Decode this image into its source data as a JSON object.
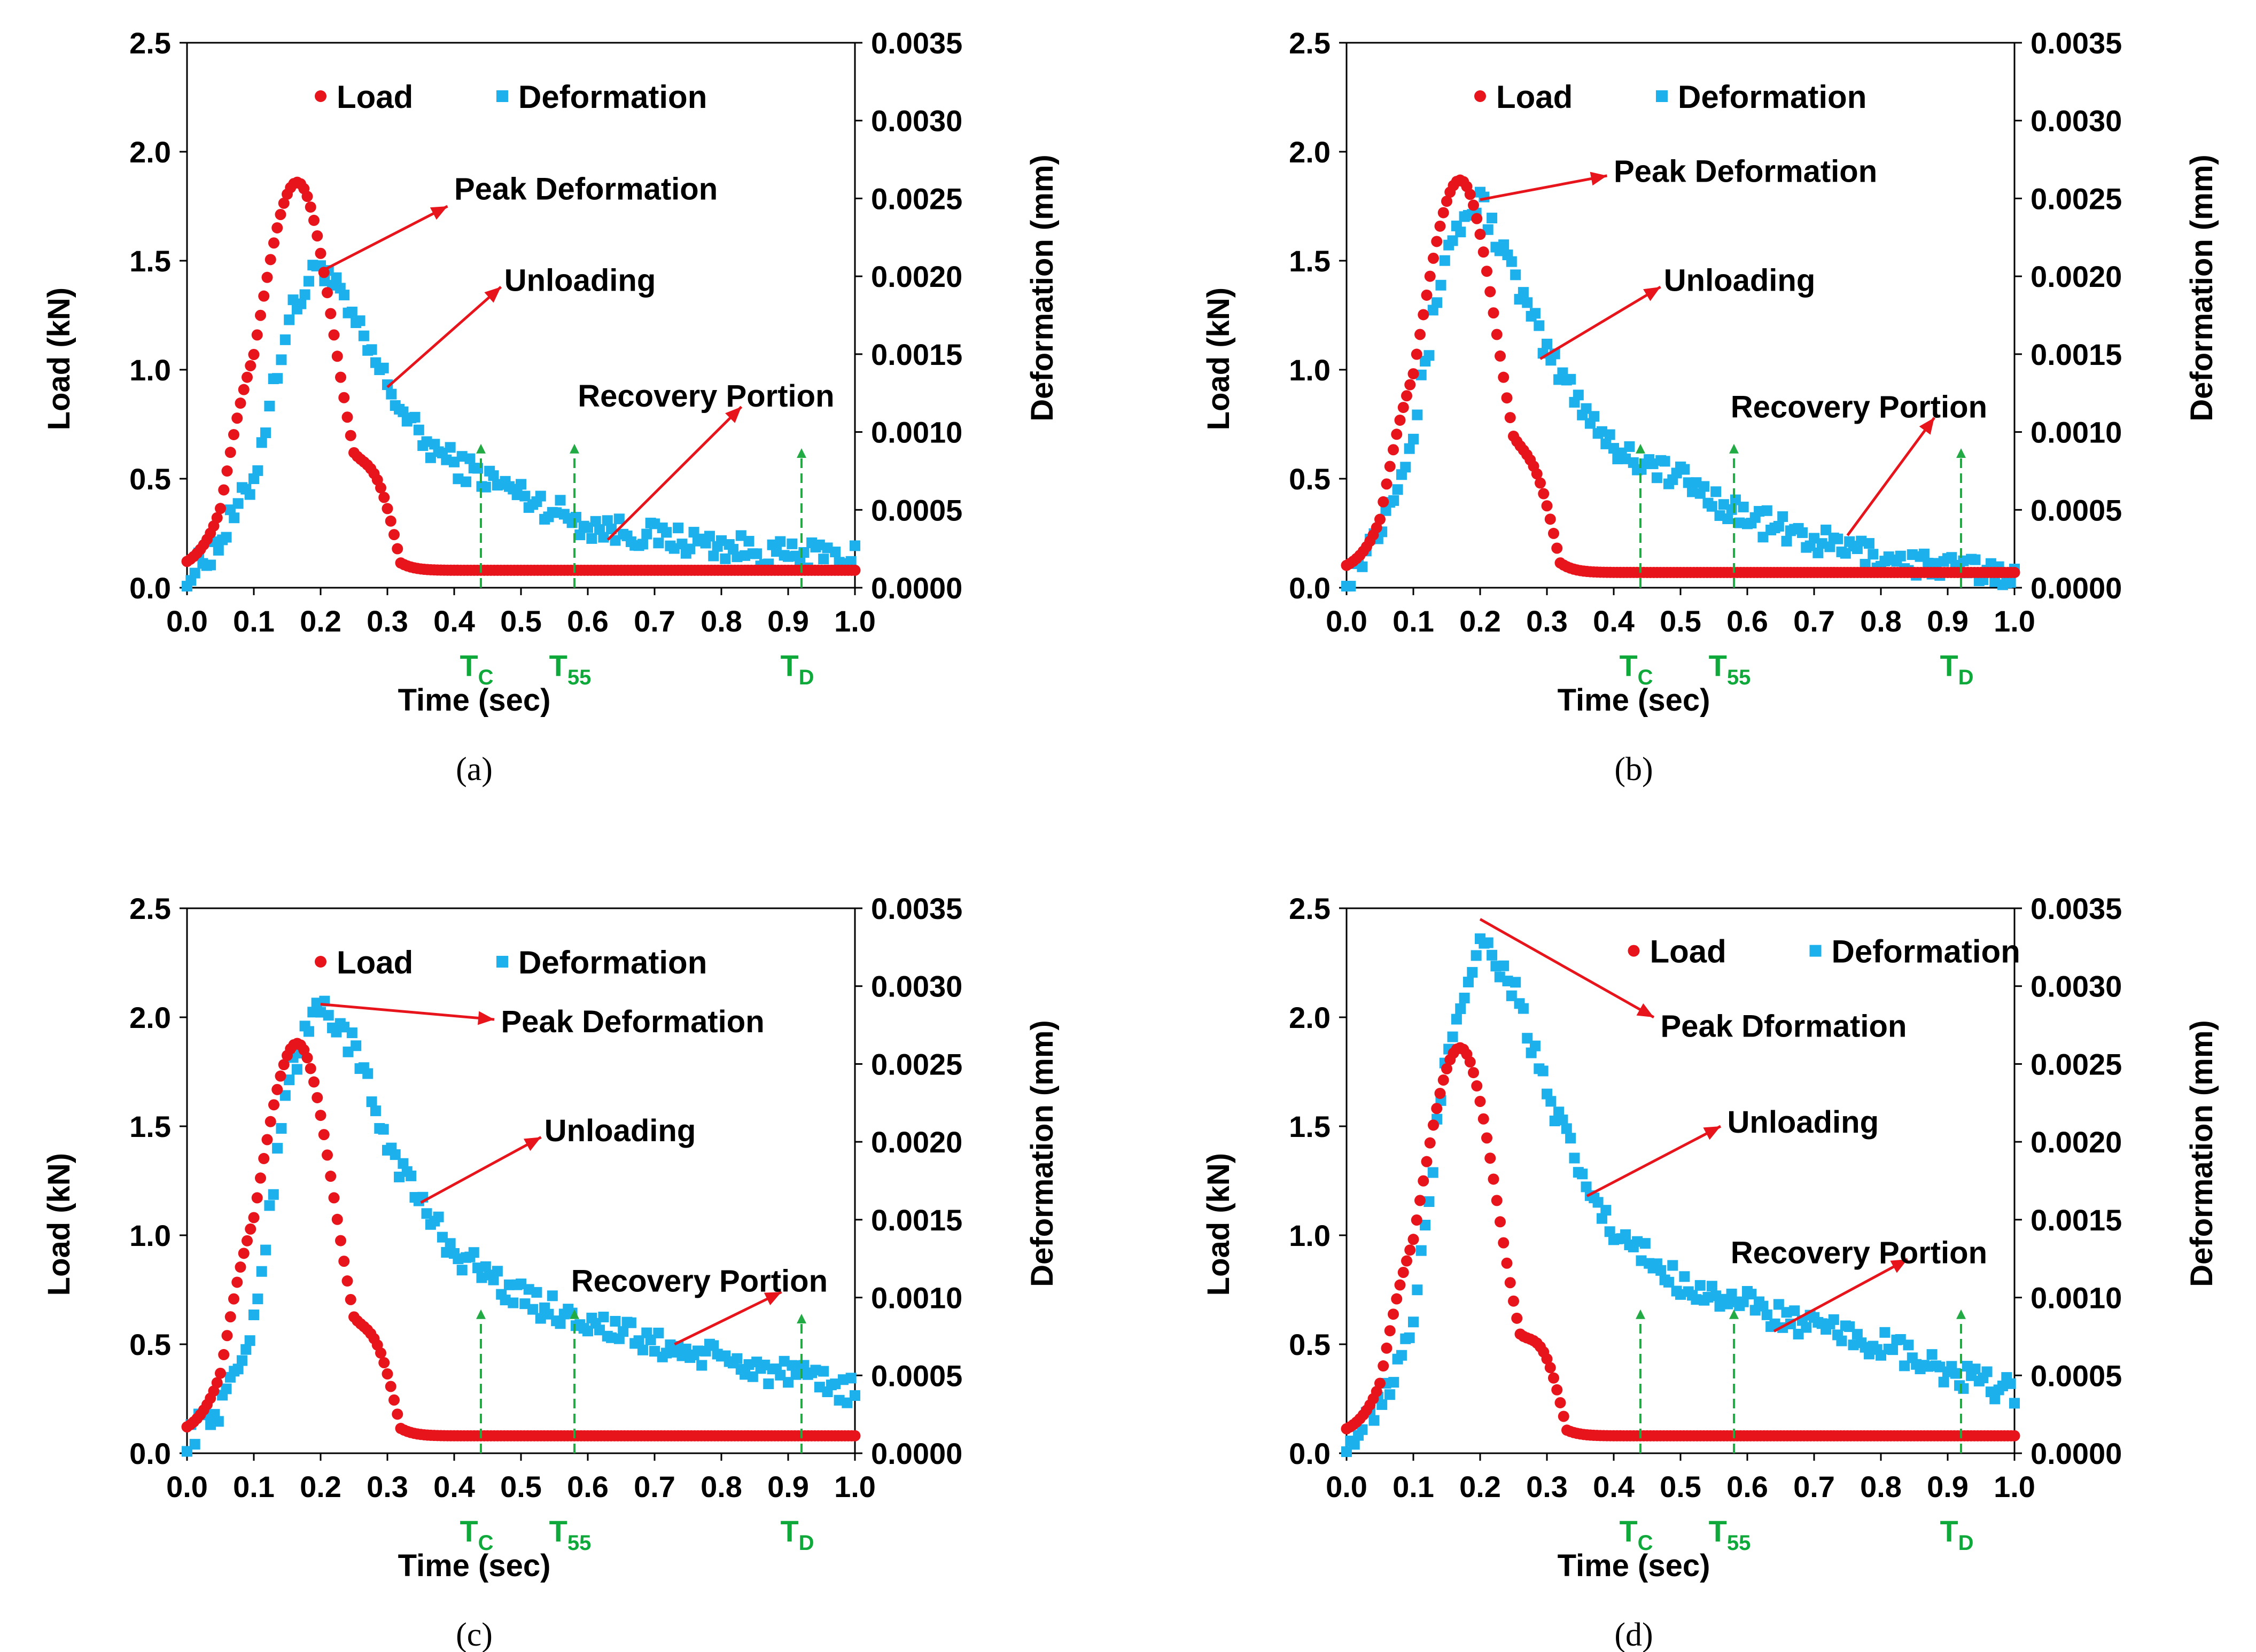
{
  "figure": {
    "colors": {
      "load": "#e8141c",
      "deformation": "#1cb0ec",
      "markers": "#22aa44",
      "arrow": "#e8141c"
    }
  },
  "panel_layout": [
    {
      "ox": 60,
      "oy": 10
    },
    {
      "ox": 2230,
      "oy": 10
    },
    {
      "ox": 60,
      "oy": 1630
    },
    {
      "ox": 2230,
      "oy": 1630
    }
  ],
  "chart_data": [
    {
      "type": "scatter",
      "caption": "(a)",
      "xlabel": "Time (sec)",
      "ylabel": "Load (kN)",
      "y2label": "Deformation (mm)",
      "xlim": [
        0,
        1.0
      ],
      "ylim": [
        0,
        2.5
      ],
      "y2lim": [
        0,
        0.0035
      ],
      "xticks": [
        "0.0",
        "0.1",
        "0.2",
        "0.3",
        "0.4",
        "0.5",
        "0.6",
        "0.7",
        "0.8",
        "0.9",
        "1.0"
      ],
      "yticks": [
        "0.0",
        "0.5",
        "1.0",
        "1.5",
        "2.0",
        "2.5"
      ],
      "y2ticks": [
        "0.0000",
        "0.0005",
        "0.0010",
        "0.0015",
        "0.0020",
        "0.0025",
        "0.0030",
        "0.0035"
      ],
      "legend": {
        "placement": "top",
        "load": "Load",
        "deformation": "Deformation"
      },
      "load_peak": {
        "time": 0.165,
        "load": 1.86
      },
      "load_shoulder_time": 0.29,
      "load_tail": 0.08,
      "deformation_profile": [
        [
          0.0,
          5e-05
        ],
        [
          0.05,
          0.0003
        ],
        [
          0.1,
          0.0007
        ],
        [
          0.15,
          0.0017
        ],
        [
          0.2,
          0.0021
        ],
        [
          0.25,
          0.0017
        ],
        [
          0.3,
          0.0013
        ],
        [
          0.35,
          0.00095
        ],
        [
          0.4,
          0.0008
        ],
        [
          0.5,
          0.0006
        ],
        [
          0.6,
          0.0004
        ],
        [
          0.7,
          0.00033
        ],
        [
          0.8,
          0.00027
        ],
        [
          0.9,
          0.0002
        ],
        [
          1.0,
          0.0002
        ]
      ],
      "markers": [
        {
          "name": "TC",
          "label": "T",
          "sub": "C",
          "x": 0.44,
          "top": 0.65
        },
        {
          "name": "T55",
          "label": "T",
          "sub": "55",
          "x": 0.58,
          "top": 0.65
        },
        {
          "name": "TD",
          "label": "T",
          "sub": "D",
          "x": 0.92,
          "top": 0.63
        }
      ],
      "annotations": [
        {
          "name": "peak",
          "text": "Peak Deformation",
          "from": [
            0.2,
            1.45
          ],
          "to": [
            0.39,
            1.75
          ],
          "text_x": 0.4,
          "text_y": 1.83
        },
        {
          "name": "unloading",
          "text": "Unloading",
          "from": [
            0.3,
            0.92
          ],
          "to": [
            0.47,
            1.38
          ],
          "text_x": 0.475,
          "text_y": 1.41
        },
        {
          "name": "recovery",
          "text": "Recovery Portion",
          "from": [
            0.63,
            0.22
          ],
          "to": [
            0.83,
            0.83
          ],
          "text_x": 0.585,
          "text_y": 0.88
        }
      ]
    },
    {
      "type": "scatter",
      "caption": "(b)",
      "xlabel": "Time (sec)",
      "ylabel": "Load (kN)",
      "y2label": "Deformation (mm)",
      "xlim": [
        0,
        1.0
      ],
      "ylim": [
        0,
        2.5
      ],
      "y2lim": [
        0,
        0.0035
      ],
      "xticks": [
        "0.0",
        "0.1",
        "0.2",
        "0.3",
        "0.4",
        "0.5",
        "0.6",
        "0.7",
        "0.8",
        "0.9",
        "1.0"
      ],
      "yticks": [
        "0.0",
        "0.5",
        "1.0",
        "1.5",
        "2.0",
        "2.5"
      ],
      "y2ticks": [
        "0.0000",
        "0.0005",
        "0.0010",
        "0.0015",
        "0.0020",
        "0.0025",
        "0.0030",
        "0.0035"
      ],
      "legend": {
        "placement": "top",
        "load": "Load",
        "deformation": "Deformation"
      },
      "load_peak": {
        "time": 0.17,
        "load": 1.87
      },
      "load_shoulder_time": 0.29,
      "load_tail": 0.07,
      "deformation_profile": [
        [
          0.0,
          3e-05
        ],
        [
          0.05,
          0.0004
        ],
        [
          0.1,
          0.001
        ],
        [
          0.15,
          0.0022
        ],
        [
          0.2,
          0.0025
        ],
        [
          0.25,
          0.002
        ],
        [
          0.3,
          0.0015
        ],
        [
          0.35,
          0.0012
        ],
        [
          0.4,
          0.0009
        ],
        [
          0.5,
          0.0007
        ],
        [
          0.6,
          0.00045
        ],
        [
          0.7,
          0.0003
        ],
        [
          0.8,
          0.0002
        ],
        [
          0.9,
          0.00012
        ],
        [
          1.0,
          0.0001
        ]
      ],
      "markers": [
        {
          "name": "TC",
          "label": "T",
          "sub": "C",
          "x": 0.44,
          "top": 0.65
        },
        {
          "name": "T55",
          "label": "T",
          "sub": "55",
          "x": 0.58,
          "top": 0.65
        },
        {
          "name": "TD",
          "label": "T",
          "sub": "D",
          "x": 0.92,
          "top": 0.63
        }
      ],
      "annotations": [
        {
          "name": "peak",
          "text": "Peak Deformation",
          "from": [
            0.2,
            1.78
          ],
          "to": [
            0.39,
            1.89
          ],
          "text_x": 0.4,
          "text_y": 1.91
        },
        {
          "name": "unloading",
          "text": "Unloading",
          "from": [
            0.29,
            1.05
          ],
          "to": [
            0.47,
            1.38
          ],
          "text_x": 0.475,
          "text_y": 1.41
        },
        {
          "name": "recovery",
          "text": "Recovery Portion",
          "from": [
            0.75,
            0.24
          ],
          "to": [
            0.88,
            0.78
          ],
          "text_x": 0.575,
          "text_y": 0.83
        }
      ]
    },
    {
      "type": "scatter",
      "caption": "(c)",
      "xlabel": "Time (sec)",
      "ylabel": "Load (kN)",
      "y2label": "Deformation (mm)",
      "xlim": [
        0,
        1.0
      ],
      "ylim": [
        0,
        2.5
      ],
      "y2lim": [
        0,
        0.0035
      ],
      "xticks": [
        "0.0",
        "0.1",
        "0.2",
        "0.3",
        "0.4",
        "0.5",
        "0.6",
        "0.7",
        "0.8",
        "0.9",
        "1.0"
      ],
      "yticks": [
        "0.0",
        "0.5",
        "1.0",
        "1.5",
        "2.0",
        "2.5"
      ],
      "y2ticks": [
        "0.0000",
        "0.0005",
        "0.0010",
        "0.0015",
        "0.0020",
        "0.0025",
        "0.0030",
        "0.0035"
      ],
      "legend": {
        "placement": "top",
        "load": "Load",
        "deformation": "Deformation"
      },
      "load_peak": {
        "time": 0.165,
        "load": 1.88
      },
      "load_shoulder_time": 0.29,
      "load_tail": 0.08,
      "deformation_profile": [
        [
          0.0,
          0.0001
        ],
        [
          0.05,
          0.0003
        ],
        [
          0.1,
          0.0008
        ],
        [
          0.15,
          0.0024
        ],
        [
          0.2,
          0.0029
        ],
        [
          0.25,
          0.0026
        ],
        [
          0.3,
          0.002
        ],
        [
          0.35,
          0.0016
        ],
        [
          0.4,
          0.0013
        ],
        [
          0.5,
          0.001
        ],
        [
          0.6,
          0.00085
        ],
        [
          0.7,
          0.0007
        ],
        [
          0.8,
          0.0006
        ],
        [
          0.9,
          0.0005
        ],
        [
          1.0,
          0.0004
        ]
      ],
      "markers": [
        {
          "name": "TC",
          "label": "T",
          "sub": "C",
          "x": 0.44,
          "top": 0.65
        },
        {
          "name": "T55",
          "label": "T",
          "sub": "55",
          "x": 0.58,
          "top": 0.65
        },
        {
          "name": "TD",
          "label": "T",
          "sub": "D",
          "x": 0.92,
          "top": 0.63
        }
      ],
      "annotations": [
        {
          "name": "peak",
          "text": "Peak Deformation",
          "from": [
            0.2,
            2.06
          ],
          "to": [
            0.46,
            1.99
          ],
          "text_x": 0.47,
          "text_y": 1.98
        },
        {
          "name": "unloading",
          "text": "Unloading",
          "from": [
            0.35,
            1.15
          ],
          "to": [
            0.53,
            1.45
          ],
          "text_x": 0.535,
          "text_y": 1.48
        },
        {
          "name": "recovery",
          "text": "Recovery Portion",
          "from": [
            0.73,
            0.5
          ],
          "to": [
            0.89,
            0.74
          ],
          "text_x": 0.575,
          "text_y": 0.79
        }
      ]
    },
    {
      "type": "scatter",
      "caption": "(d)",
      "xlabel": "Time (sec)",
      "ylabel": "Load (kN)",
      "y2label": "Deformation (mm)",
      "xlim": [
        0,
        1.0
      ],
      "ylim": [
        0,
        2.5
      ],
      "y2lim": [
        0,
        0.0035
      ],
      "xticks": [
        "0.0",
        "0.1",
        "0.2",
        "0.3",
        "0.4",
        "0.5",
        "0.6",
        "0.7",
        "0.8",
        "0.9",
        "1.0"
      ],
      "yticks": [
        "0.0",
        "0.5",
        "1.0",
        "1.5",
        "2.0",
        "2.5"
      ],
      "y2ticks": [
        "0.0000",
        "0.0005",
        "0.0010",
        "0.0015",
        "0.0020",
        "0.0025",
        "0.0030",
        "0.0035"
      ],
      "legend": {
        "placement": "top-right",
        "load": "Load",
        "deformation": "Deformation"
      },
      "load_peak": {
        "time": 0.17,
        "load": 1.86
      },
      "load_shoulder_time": 0.3,
      "load_tail": 0.08,
      "deformation_profile": [
        [
          0.0,
          3e-05
        ],
        [
          0.05,
          0.0003
        ],
        [
          0.1,
          0.0008
        ],
        [
          0.15,
          0.0026
        ],
        [
          0.2,
          0.0033
        ],
        [
          0.25,
          0.003
        ],
        [
          0.3,
          0.0023
        ],
        [
          0.35,
          0.0018
        ],
        [
          0.4,
          0.0014
        ],
        [
          0.5,
          0.0011
        ],
        [
          0.6,
          0.00095
        ],
        [
          0.7,
          0.0008
        ],
        [
          0.8,
          0.0007
        ],
        [
          0.9,
          0.0005
        ],
        [
          1.0,
          0.0004
        ]
      ],
      "markers": [
        {
          "name": "TC",
          "label": "T",
          "sub": "C",
          "x": 0.44,
          "top": 0.65
        },
        {
          "name": "T55",
          "label": "T",
          "sub": "55",
          "x": 0.58,
          "top": 0.65
        },
        {
          "name": "TD",
          "label": "T",
          "sub": "D",
          "x": 0.92,
          "top": 0.65
        }
      ],
      "annotations": [
        {
          "name": "peak",
          "text": "Peak Dformation",
          "from": [
            0.2,
            2.45
          ],
          "to": [
            0.46,
            2.0
          ],
          "text_x": 0.47,
          "text_y": 1.96
        },
        {
          "name": "unloading",
          "text": "Unloading",
          "from": [
            0.36,
            1.18
          ],
          "to": [
            0.56,
            1.5
          ],
          "text_x": 0.57,
          "text_y": 1.52
        },
        {
          "name": "recovery",
          "text": "Recovery Portion",
          "from": [
            0.64,
            0.56
          ],
          "to": [
            0.84,
            0.89
          ],
          "text_x": 0.575,
          "text_y": 0.92
        }
      ]
    }
  ]
}
